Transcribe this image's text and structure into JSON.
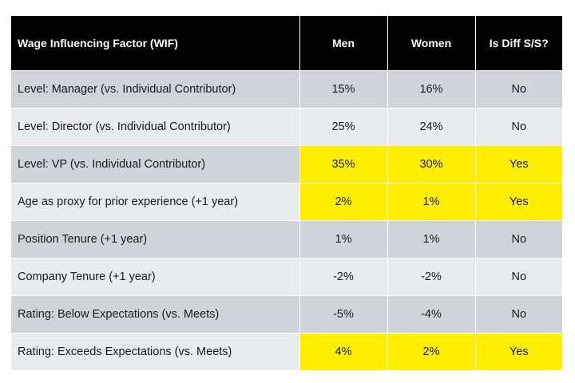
{
  "table": {
    "headers": [
      "Wage Influencing Factor (WIF)",
      "Men",
      "Women",
      "Is Diff S/S?"
    ],
    "rows": [
      {
        "factor": "Level: Manager (vs. Individual Contributor)",
        "men": "15%",
        "women": "16%",
        "diff": "No",
        "highlight": false
      },
      {
        "factor": "Level: Director (vs. Individual Contributor)",
        "men": "25%",
        "women": "24%",
        "diff": "No",
        "highlight": false
      },
      {
        "factor": "Level: VP  (vs. Individual Contributor)",
        "men": "35%",
        "women": "30%",
        "diff": "Yes",
        "highlight": true
      },
      {
        "factor": "Age as proxy for prior experience (+1 year)",
        "men": "2%",
        "women": "1%",
        "diff": "Yes",
        "highlight": true
      },
      {
        "factor": "Position Tenure (+1 year)",
        "men": "1%",
        "women": "1%",
        "diff": "No",
        "highlight": false
      },
      {
        "factor": "Company Tenure (+1 year)",
        "men": "-2%",
        "women": "-2%",
        "diff": "No",
        "highlight": false
      },
      {
        "factor": "Rating: Below Expectations (vs. Meets)",
        "men": "-5%",
        "women": "-4%",
        "diff": "No",
        "highlight": false
      },
      {
        "factor": "Rating: Exceeds Expectations (vs. Meets)",
        "men": "4%",
        "women": "2%",
        "diff": "Yes",
        "highlight": true
      }
    ]
  },
  "colors": {
    "header_bg": "#000000",
    "row_dark": "#d0d4d9",
    "row_light": "#e9ebee",
    "highlight": "#ffee00"
  }
}
